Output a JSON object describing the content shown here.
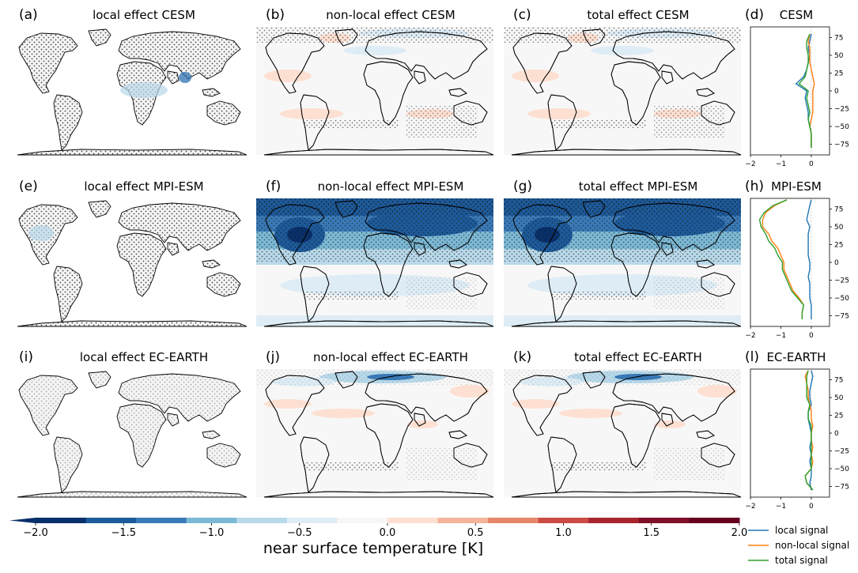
{
  "colors": {
    "local": "#1f77b4",
    "non_local": "#ff7f0e",
    "total": "#2ca02c",
    "cmap": [
      "#08306b",
      "#1d5a9a",
      "#3a7ab8",
      "#7cb9d6",
      "#b8d9ea",
      "#deecf5",
      "#f7f7f7",
      "#fde0d2",
      "#f4b39a",
      "#e7866b",
      "#cc4c45",
      "#a9262e",
      "#800f2a",
      "#67001f"
    ]
  },
  "chart_data": [
    {
      "type": "heatmap",
      "panel": "(a)",
      "title": "local effect CESM",
      "model": "CESM",
      "kind": "local"
    },
    {
      "type": "heatmap",
      "panel": "(b)",
      "title": "non-local effect CESM",
      "model": "CESM",
      "kind": "nonlocal"
    },
    {
      "type": "heatmap",
      "panel": "(c)",
      "title": "total effect CESM",
      "model": "CESM",
      "kind": "total"
    },
    {
      "type": "line",
      "panel": "(d)",
      "title": "CESM",
      "xlim": [
        -2,
        0.6
      ],
      "ylim": [
        -90,
        90
      ],
      "xticks": [
        "−2",
        "−1",
        "0"
      ],
      "yticks": [
        "75",
        "50",
        "25",
        "0",
        "−25",
        "−50",
        "−75"
      ],
      "ytick_values": [
        75,
        50,
        25,
        0,
        -25,
        -50,
        -75
      ],
      "lat": [
        -80,
        -70,
        -60,
        -50,
        -40,
        -30,
        -20,
        -10,
        0,
        10,
        20,
        30,
        40,
        50,
        60,
        70,
        80
      ],
      "series": [
        {
          "name": "local signal",
          "values": [
            0,
            0,
            0,
            -0.05,
            -0.1,
            -0.1,
            -0.15,
            -0.2,
            -0.15,
            -0.5,
            -0.25,
            -0.15,
            -0.1,
            -0.05,
            -0.1,
            -0.05,
            0
          ]
        },
        {
          "name": "non-local signal",
          "values": [
            0,
            0,
            0,
            -0.05,
            0,
            0.05,
            0.05,
            0.05,
            0.05,
            0.1,
            0.05,
            0,
            -0.05,
            -0.05,
            -0.05,
            -0.1,
            -0.05
          ]
        },
        {
          "name": "total signal",
          "values": [
            0,
            0,
            0,
            -0.05,
            -0.1,
            -0.05,
            -0.1,
            -0.15,
            -0.1,
            -0.4,
            -0.2,
            -0.15,
            -0.1,
            -0.1,
            -0.15,
            -0.15,
            -0.05
          ]
        }
      ]
    },
    {
      "type": "heatmap",
      "panel": "(e)",
      "title": "local effect MPI-ESM",
      "model": "MPI-ESM",
      "kind": "local"
    },
    {
      "type": "heatmap",
      "panel": "(f)",
      "title": "non-local effect MPI-ESM",
      "model": "MPI-ESM",
      "kind": "nonlocal"
    },
    {
      "type": "heatmap",
      "panel": "(g)",
      "title": "total effect MPI-ESM",
      "model": "MPI-ESM",
      "kind": "total"
    },
    {
      "type": "line",
      "panel": "(h)",
      "title": "MPI-ESM",
      "xlim": [
        -2,
        0.6
      ],
      "ylim": [
        -90,
        90
      ],
      "xticks": [
        "−2",
        "−1",
        "0"
      ],
      "yticks": [
        "75",
        "50",
        "25",
        "0",
        "−25",
        "−50",
        "−75"
      ],
      "ytick_values": [
        75,
        50,
        25,
        0,
        -25,
        -50,
        -75
      ],
      "lat": [
        -80,
        -70,
        -60,
        -50,
        -40,
        -30,
        -20,
        -10,
        0,
        10,
        20,
        30,
        40,
        50,
        60,
        70,
        80,
        88
      ],
      "series": [
        {
          "name": "local signal",
          "values": [
            0,
            0,
            0,
            -0.05,
            -0.05,
            -0.05,
            -0.1,
            -0.05,
            -0.05,
            -0.1,
            -0.1,
            -0.1,
            -0.1,
            -0.05,
            -0.15,
            -0.1,
            -0.05,
            0
          ]
        },
        {
          "name": "non-local signal",
          "values": [
            -0.3,
            -0.3,
            -0.25,
            -0.4,
            -0.6,
            -0.7,
            -0.8,
            -0.9,
            -0.9,
            -1.0,
            -1.1,
            -1.3,
            -1.4,
            -1.6,
            -1.6,
            -1.5,
            -1.2,
            -0.8
          ]
        },
        {
          "name": "total signal",
          "values": [
            -0.3,
            -0.3,
            -0.25,
            -0.45,
            -0.65,
            -0.75,
            -0.85,
            -0.95,
            -0.95,
            -1.1,
            -1.2,
            -1.4,
            -1.5,
            -1.65,
            -1.7,
            -1.55,
            -1.25,
            -0.8
          ]
        }
      ]
    },
    {
      "type": "heatmap",
      "panel": "(i)",
      "title": "local effect EC-EARTH",
      "model": "EC-EARTH",
      "kind": "local"
    },
    {
      "type": "heatmap",
      "panel": "(j)",
      "title": "non-local effect EC-EARTH",
      "model": "EC-EARTH",
      "kind": "nonlocal"
    },
    {
      "type": "heatmap",
      "panel": "(k)",
      "title": "total effect EC-EARTH",
      "model": "EC-EARTH",
      "kind": "total"
    },
    {
      "type": "line",
      "panel": "(l)",
      "title": "EC-EARTH",
      "xlim": [
        -2,
        0.6
      ],
      "ylim": [
        -90,
        90
      ],
      "xticks": [
        "−2",
        "−1",
        "0"
      ],
      "yticks": [
        "75",
        "50",
        "25",
        "0",
        "−25",
        "−50",
        "−75"
      ],
      "ytick_values": [
        75,
        50,
        25,
        0,
        -25,
        -50,
        -75
      ],
      "lat": [
        -80,
        -70,
        -60,
        -50,
        -40,
        -30,
        -20,
        -10,
        0,
        10,
        20,
        30,
        40,
        50,
        60,
        70,
        80,
        88
      ],
      "series": [
        {
          "name": "local signal",
          "values": [
            0,
            -0.05,
            0,
            0,
            -0.05,
            0,
            -0.05,
            0,
            0,
            -0.05,
            -0.1,
            -0.1,
            0,
            -0.05,
            -0.05,
            0,
            0.05,
            0
          ]
        },
        {
          "name": "non-local signal",
          "values": [
            0.05,
            -0.15,
            -0.2,
            0,
            0.05,
            0,
            0.05,
            0,
            0,
            0.05,
            0,
            0,
            -0.05,
            -0.1,
            -0.1,
            -0.15,
            -0.2,
            -0.1
          ]
        },
        {
          "name": "total signal",
          "values": [
            0.05,
            -0.15,
            -0.2,
            0,
            0,
            0,
            0,
            0,
            0,
            0,
            -0.1,
            -0.1,
            -0.05,
            -0.15,
            -0.15,
            -0.15,
            -0.15,
            -0.1
          ]
        }
      ]
    }
  ],
  "colorbar": {
    "label": "near surface temperature [K]",
    "range": [
      -2.0,
      2.0
    ],
    "ticks": [
      "−2.0",
      "−1.5",
      "−1.0",
      "−0.5",
      "0.0",
      "0.5",
      "1.0",
      "1.5",
      "2.0"
    ]
  },
  "legend": {
    "placement": "bottom-right",
    "items": [
      "local signal",
      "non-local signal",
      "total signal"
    ]
  }
}
